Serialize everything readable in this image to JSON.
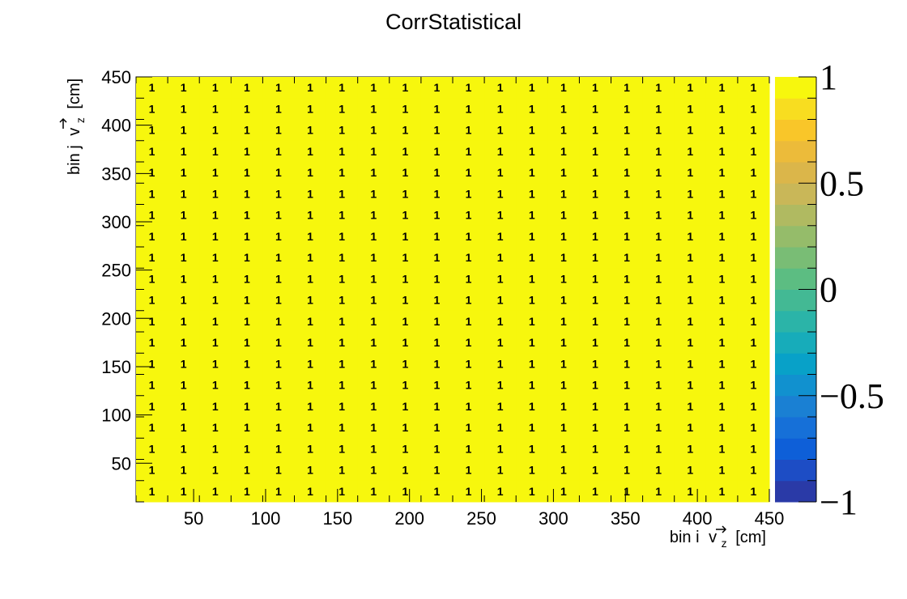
{
  "chart_data": {
    "type": "heatmap",
    "title": "CorrStatistical",
    "xlabel": "bin i",
    "xlabel_var": "v",
    "xlabel_sub": "z",
    "xlabel_unit": "[cm]",
    "ylabel": "bin j",
    "ylabel_var": "v",
    "ylabel_sub": "z",
    "ylabel_unit": "[cm]",
    "xlim": [
      10,
      450
    ],
    "ylim": [
      10,
      450
    ],
    "bins_x": 20,
    "bins_y": 20,
    "cell_value": 1,
    "cell_label": "1",
    "cell_color": "#f7f70d",
    "x_ticks": [
      "50",
      "100",
      "150",
      "200",
      "250",
      "300",
      "350",
      "400",
      "450"
    ],
    "y_ticks": [
      "50",
      "100",
      "150",
      "200",
      "250",
      "300",
      "350",
      "400",
      "450"
    ],
    "colorbar": {
      "min": -1,
      "max": 1,
      "tick_values": [
        1,
        0.5,
        0,
        -0.5,
        -1
      ],
      "tick_labels": [
        "1",
        "0.5",
        "0",
        "−0.5",
        "−1"
      ],
      "colors": [
        "#2a3aa7",
        "#1d4dc5",
        "#0e5fd8",
        "#1670d8",
        "#1a80d3",
        "#1191cf",
        "#08a1c8",
        "#17acba",
        "#2bb4a8",
        "#43b994",
        "#5cbd82",
        "#79bd75",
        "#95bc6a",
        "#b0ba61",
        "#c9b758",
        "#dbb64a",
        "#ecbb3a",
        "#f9c629",
        "#f8dd20",
        "#f7f70d"
      ]
    }
  }
}
